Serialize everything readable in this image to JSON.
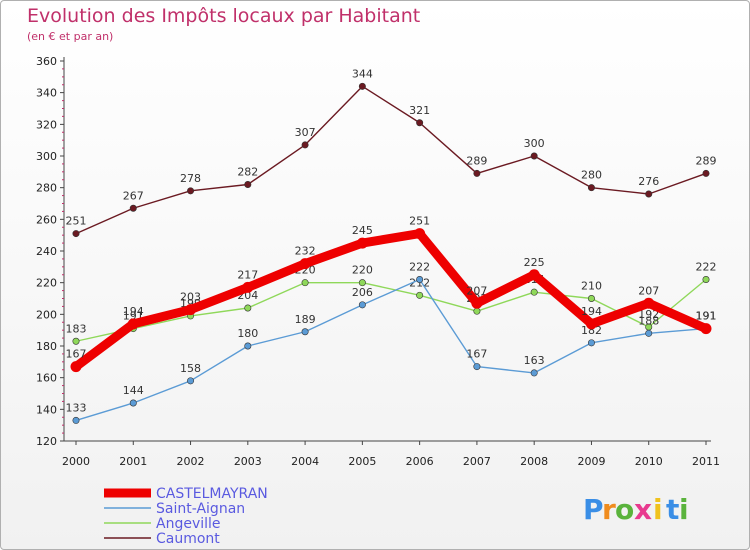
{
  "chart_data": {
    "type": "line",
    "title": "Evolution des Impôts locaux par Habitant",
    "subtitle": "(en € et par an)",
    "xlabel": "",
    "ylabel": "",
    "ylim": [
      120,
      360
    ],
    "yticks": [
      "120",
      "140",
      "160",
      "180",
      "200",
      "220",
      "240",
      "260",
      "280",
      "300",
      "320",
      "340",
      "360"
    ],
    "categories": [
      "2000",
      "2001",
      "2002",
      "2003",
      "2004",
      "2005",
      "2006",
      "2007",
      "2008",
      "2009",
      "2010",
      "2011"
    ],
    "series": [
      {
        "name": "Caumont",
        "color": "#6b1a22",
        "values": [
          251,
          267,
          278,
          282,
          307,
          344,
          321,
          289,
          300,
          280,
          276,
          289
        ],
        "labels": [
          "251",
          "267",
          "278",
          "282",
          "307",
          "344",
          "321",
          "289",
          "300",
          "280",
          "276",
          "289"
        ]
      },
      {
        "name": "Angeville",
        "color": "#8fd85a",
        "values": [
          183,
          191,
          199,
          204,
          220,
          220,
          212,
          202,
          214,
          210,
          192,
          222
        ],
        "labels": [
          "183",
          "191",
          "199",
          "204",
          "220",
          "220",
          "212",
          "202",
          "214",
          "210",
          "192",
          "222"
        ]
      },
      {
        "name": "Saint-Aignan",
        "color": "#5b9bd5",
        "values": [
          133,
          144,
          158,
          180,
          189,
          206,
          222,
          167,
          163,
          182,
          188,
          191
        ],
        "labels": [
          "133",
          "144",
          "158",
          "180",
          "189",
          "206",
          "222",
          "167",
          "163",
          "182",
          "188",
          "191"
        ]
      },
      {
        "name": "CASTELMAYRAN",
        "color": "#ee0000",
        "values": [
          167,
          194,
          203,
          217,
          232,
          245,
          251,
          207,
          225,
          194,
          207,
          191
        ],
        "labels": [
          "167",
          "194",
          "203",
          "217",
          "232",
          "245",
          "251",
          "207",
          "225",
          "194",
          "207",
          "191"
        ]
      }
    ],
    "legend": [
      "CASTELMAYRAN",
      "Saint-Aignan",
      "Angeville",
      "Caumont"
    ],
    "legend_position": "bottom-left",
    "grid": false
  },
  "brand": {
    "letters": [
      "P",
      "r",
      "o",
      "x",
      "i",
      "t",
      "i"
    ],
    "colors": [
      "#3a8ee6",
      "#f08c1e",
      "#5ab33c",
      "#e83a8f",
      "#f0c21e",
      "#3a8ee6",
      "#5ab33c"
    ]
  }
}
